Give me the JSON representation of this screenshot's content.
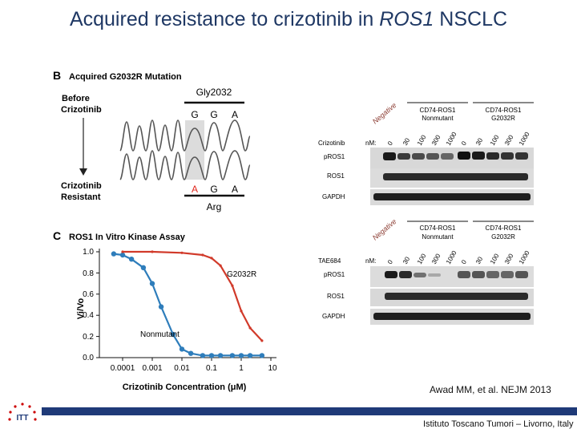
{
  "slide": {
    "title_main": "Acquired resistance to crizotinib in ",
    "title_gene": "ROS1",
    "title_end": " NSCLC",
    "citation": "Awad MM, et al. NEJM 2013",
    "footer": "Istituto Toscano Tumori – Livorno, Italy",
    "logo_text": "ITT"
  },
  "panel_b": {
    "letter": "B",
    "heading": "Acquired G2032R Mutation",
    "codon_label": "Gly2032",
    "before_label_1": "Before",
    "before_label_2": "Crizotinib",
    "after_label_1": "Crizotinib",
    "after_label_2": "Resistant",
    "before_bases": [
      "G",
      "G",
      "A"
    ],
    "after_bases": [
      "A",
      "G",
      "A"
    ],
    "after_codon": "Arg",
    "colors": {
      "mutant_base": "#e0261c",
      "highlight": "#dcdcdc"
    }
  },
  "panel_c": {
    "letter": "C",
    "heading": "ROS1 In Vitro Kinase Assay",
    "ylabel": "Vi/Vo",
    "xlabel": "Crizotinib Concentration (μM)",
    "x_ticks": [
      "0.0001",
      "0.001",
      "0.01",
      "0.1",
      "1",
      "10"
    ],
    "y_ticks": [
      "0.0",
      "0.2",
      "0.4",
      "0.6",
      "0.8",
      "1.0"
    ],
    "series_labels": {
      "mutant": "G2032R",
      "wt": "Nonmutant"
    }
  },
  "chart_data": {
    "type": "line",
    "title": "ROS1 In Vitro Kinase Assay",
    "xlabel": "Crizotinib Concentration (μM)",
    "ylabel": "Vi/Vo",
    "xscale": "log",
    "xlim": [
      5e-05,
      10
    ],
    "ylim": [
      0,
      1.0
    ],
    "series": [
      {
        "name": "Nonmutant",
        "color": "#2e7dbb",
        "x": [
          5e-05,
          0.0001,
          0.0002,
          0.0005,
          0.001,
          0.002,
          0.005,
          0.01,
          0.02,
          0.05,
          0.1,
          0.2,
          0.5,
          1,
          2,
          5
        ],
        "y": [
          0.98,
          0.97,
          0.93,
          0.85,
          0.7,
          0.48,
          0.22,
          0.08,
          0.04,
          0.02,
          0.02,
          0.02,
          0.02,
          0.02,
          0.02,
          0.02
        ]
      },
      {
        "name": "G2032R",
        "color": "#d13a2a",
        "x": [
          0.0001,
          0.001,
          0.01,
          0.05,
          0.1,
          0.2,
          0.5,
          1,
          2,
          5
        ],
        "y": [
          1.0,
          1.0,
          0.99,
          0.97,
          0.94,
          0.87,
          0.68,
          0.44,
          0.28,
          0.16
        ]
      }
    ]
  },
  "western_blot_crizotinib": {
    "drug_label": "Crizotinib",
    "nm_label": "nM:",
    "negative_label": "Negative",
    "group1": [
      "CD74-ROS1",
      "Nonmutant"
    ],
    "group2": [
      "CD74-ROS1",
      "G2032R"
    ],
    "doses": [
      "0",
      "30",
      "100",
      "300",
      "1000"
    ],
    "rows": [
      "pROS1",
      "ROS1",
      "GAPDH"
    ]
  },
  "western_blot_tae": {
    "drug_label": "TAE684",
    "nm_label": "nM:",
    "negative_label": "Negative",
    "group1": [
      "CD74-ROS1",
      "Nonmutant"
    ],
    "group2": [
      "CD74-ROS1",
      "G2032R"
    ],
    "doses": [
      "0",
      "30",
      "100",
      "300",
      "1000"
    ],
    "rows": [
      "pROS1",
      "ROS1",
      "GAPDH"
    ]
  }
}
